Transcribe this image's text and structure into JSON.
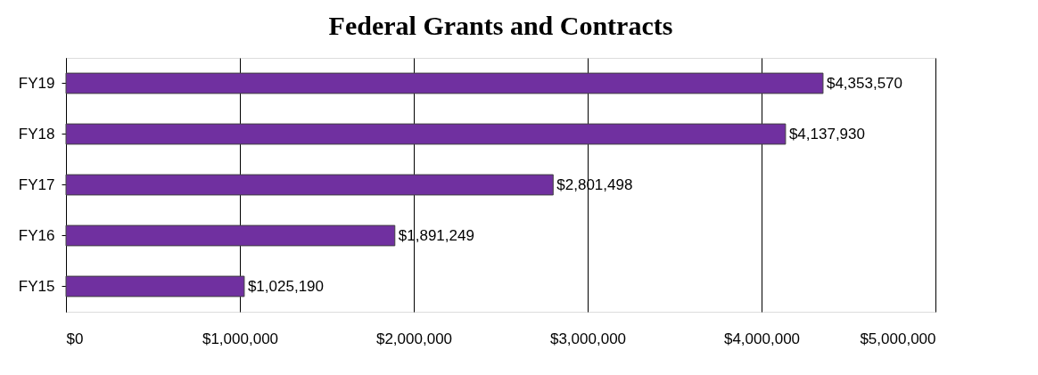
{
  "chart_data": {
    "type": "bar",
    "orientation": "horizontal",
    "title": "Federal Grants and Contracts",
    "categories": [
      "FY19",
      "FY18",
      "FY17",
      "FY16",
      "FY15"
    ],
    "values": [
      4353570,
      4137930,
      2801498,
      1891249,
      1025190
    ],
    "value_labels": [
      "$4,353,570",
      "$4,137,930",
      "$2,801,498",
      "$1,891,249",
      "$1,025,190"
    ],
    "color": "#7030a0",
    "xlim": [
      0,
      5000000
    ],
    "xticks": [
      {
        "value": 0,
        "label": "$0"
      },
      {
        "value": 1000000,
        "label": "$1,000,000"
      },
      {
        "value": 2000000,
        "label": "$2,000,000"
      },
      {
        "value": 3000000,
        "label": "$3,000,000"
      },
      {
        "value": 4000000,
        "label": "$4,000,000"
      },
      {
        "value": 5000000,
        "label": "$5,000,000"
      }
    ],
    "grid": "x"
  }
}
